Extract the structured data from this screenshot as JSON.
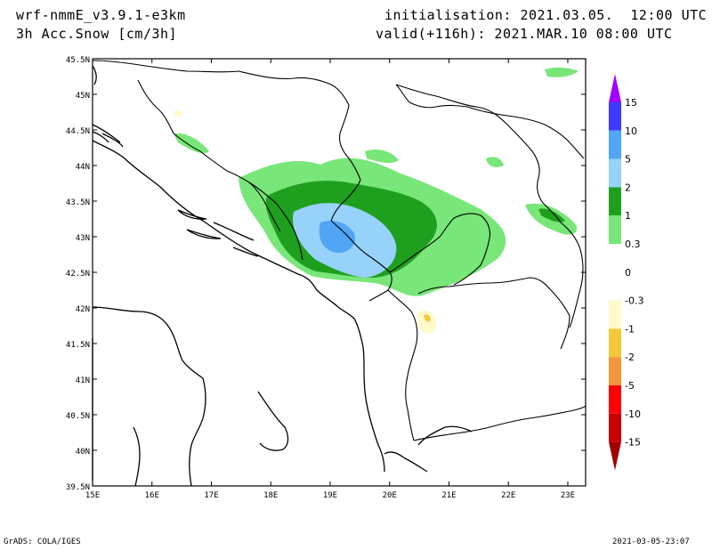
{
  "header": {
    "model": "wrf-nmmE_v3.9.1-e3km",
    "field": "3h Acc.Snow [cm/3h]",
    "init": "initialisation: 2021.03.05.  12:00 UTC",
    "valid": "valid(+116h): 2021.MAR.10 08:00 UTC"
  },
  "map": {
    "lat_labels": [
      "45.5N",
      "45N",
      "44.5N",
      "44N",
      "43.5N",
      "43N",
      "42.5N",
      "42N",
      "41.5N",
      "41N",
      "40.5N",
      "40N",
      "39.5N"
    ],
    "lon_labels": [
      "15E",
      "16E",
      "17E",
      "18E",
      "19E",
      "20E",
      "21E",
      "22E",
      "23E"
    ],
    "lat_range": [
      39.5,
      45.5
    ],
    "lon_range": [
      15,
      23.3
    ],
    "land_color": "#ffffff",
    "border_color": "#000000"
  },
  "colorbar": {
    "labels": [
      "15",
      "10",
      "5",
      "2",
      "1",
      "0.3",
      "0",
      "-0.3",
      "-1",
      "-2",
      "-5",
      "-10",
      "-15"
    ],
    "colors": [
      "#a000ff",
      "#3c3cff",
      "#50a5f5",
      "#96d2fa",
      "#1ea01e",
      "#78e678",
      "#ffffff",
      "#ffffff",
      "#fffac8",
      "#f5c83c",
      "#f5963c",
      "#ff0000",
      "#c80000",
      "#a00000"
    ]
  },
  "footer": {
    "left": "GrADS: COLA/IGES",
    "right": "2021-03-05-23:07"
  }
}
